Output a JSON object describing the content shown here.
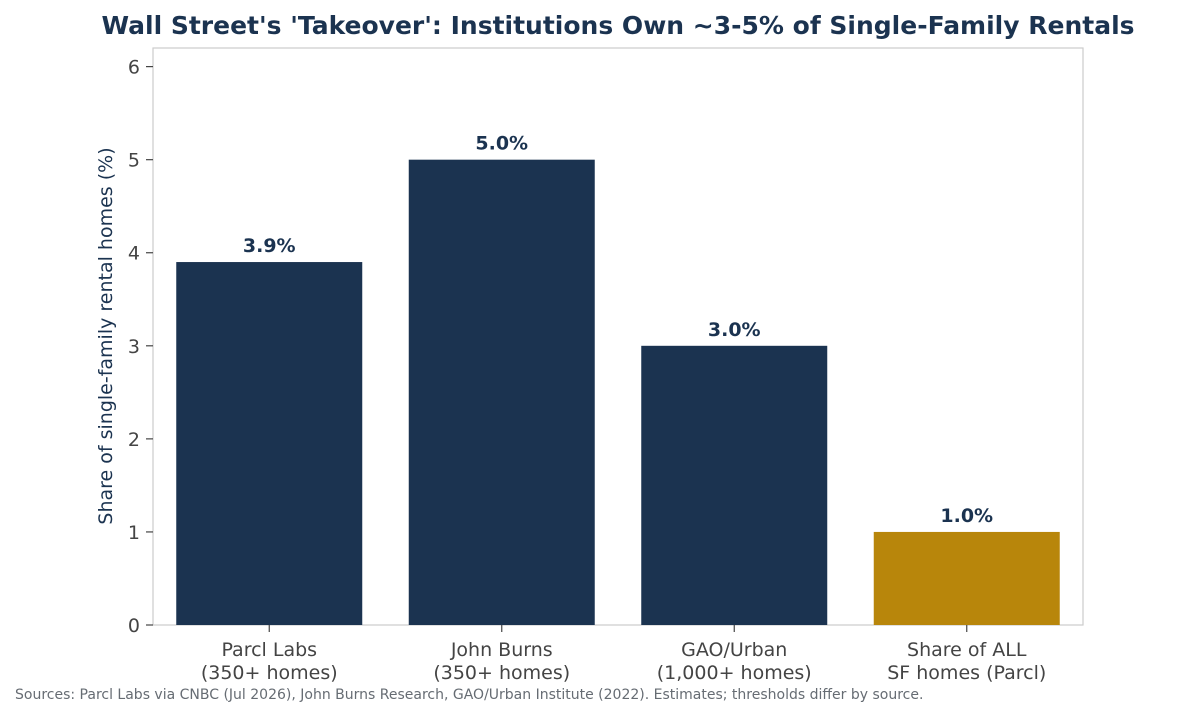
{
  "chart_data": {
    "type": "bar",
    "title": "Wall Street's 'Takeover': Institutions Own ~3-5% of Single-Family Rentals",
    "xlabel": "",
    "ylabel": "Share of single-family rental homes (%)",
    "ylim": [
      0,
      6.2
    ],
    "yticks": [
      "0",
      "1",
      "2",
      "3",
      "4",
      "5",
      "6"
    ],
    "categories": [
      [
        "Parcl Labs",
        "(350+ homes)"
      ],
      [
        "John Burns",
        "(350+ homes)"
      ],
      [
        "GAO/Urban",
        "(1,000+ homes)"
      ],
      [
        "Share of ALL",
        "SF homes (Parcl)"
      ]
    ],
    "values": [
      3.9,
      5.0,
      3.0,
      1.0
    ],
    "data_labels": [
      "3.9%",
      "5.0%",
      "3.0%",
      "1.0%"
    ],
    "bar_colors": [
      "#1b3350",
      "#1b3350",
      "#1b3350",
      "#b8860b"
    ],
    "grid": false,
    "legend": "none",
    "source_note": "Sources: Parcl Labs via CNBC (Jul 2026), John Burns Research, GAO/Urban Institute (2022). Estimates; thresholds differ by source."
  }
}
